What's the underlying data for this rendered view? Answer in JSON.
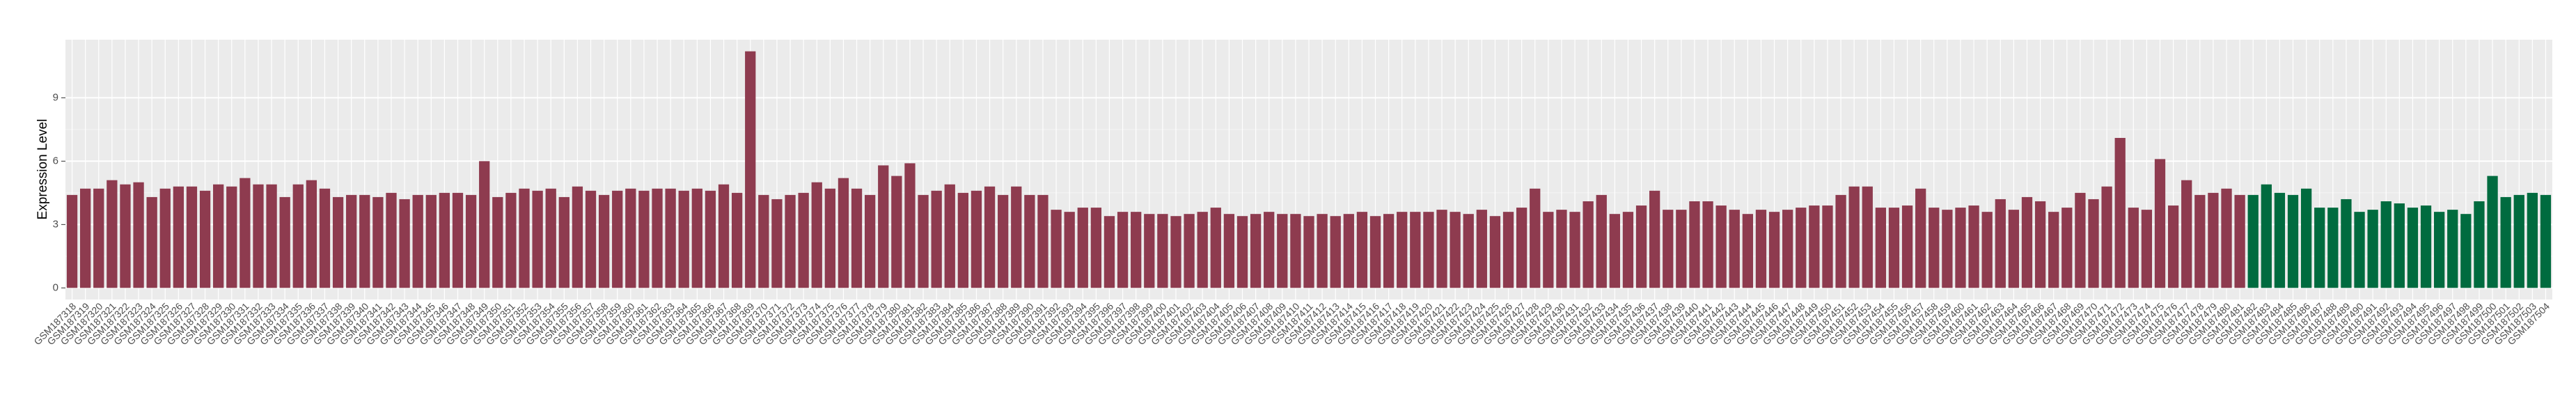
{
  "chart_data": {
    "type": "bar",
    "y_label": "Expression Level",
    "categories": [
      "GSM187318",
      "GSM187319",
      "GSM187320",
      "GSM187321",
      "GSM187322",
      "GSM187323",
      "GSM187324",
      "GSM187325",
      "GSM187326",
      "GSM187327",
      "GSM187328",
      "GSM187329",
      "GSM187330",
      "GSM187331",
      "GSM187332",
      "GSM187333",
      "GSM187334",
      "GSM187335",
      "GSM187336",
      "GSM187337",
      "GSM187338",
      "GSM187339",
      "GSM187340",
      "GSM187341",
      "GSM187342",
      "GSM187343",
      "GSM187344",
      "GSM187345",
      "GSM187346",
      "GSM187347",
      "GSM187348",
      "GSM187349",
      "GSM187350",
      "GSM187351",
      "GSM187352",
      "GSM187353",
      "GSM187354",
      "GSM187355",
      "GSM187356",
      "GSM187357",
      "GSM187358",
      "GSM187359",
      "GSM187360",
      "GSM187361",
      "GSM187362",
      "GSM187363",
      "GSM187364",
      "GSM187365",
      "GSM187366",
      "GSM187367",
      "GSM187368",
      "GSM187369",
      "GSM187370",
      "GSM187371",
      "GSM187372",
      "GSM187373",
      "GSM187374",
      "GSM187375",
      "GSM187376",
      "GSM187377",
      "GSM187378",
      "GSM187379",
      "GSM187380",
      "GSM187381",
      "GSM187382",
      "GSM187383",
      "GSM187384",
      "GSM187385",
      "GSM187386",
      "GSM187387",
      "GSM187388",
      "GSM187389",
      "GSM187390",
      "GSM187391",
      "GSM187392",
      "GSM187393",
      "GSM187394",
      "GSM187395",
      "GSM187396",
      "GSM187397",
      "GSM187398",
      "GSM187399",
      "GSM187400",
      "GSM187401",
      "GSM187402",
      "GSM187403",
      "GSM187404",
      "GSM187405",
      "GSM187406",
      "GSM187407",
      "GSM187408",
      "GSM187409",
      "GSM187410",
      "GSM187411",
      "GSM187412",
      "GSM187413",
      "GSM187414",
      "GSM187415",
      "GSM187416",
      "GSM187417",
      "GSM187418",
      "GSM187419",
      "GSM187420",
      "GSM187421",
      "GSM187422",
      "GSM187423",
      "GSM187424",
      "GSM187425",
      "GSM187426",
      "GSM187427",
      "GSM187428",
      "GSM187429",
      "GSM187430",
      "GSM187431",
      "GSM187432",
      "GSM187433",
      "GSM187434",
      "GSM187435",
      "GSM187436",
      "GSM187437",
      "GSM187438",
      "GSM187439",
      "GSM187440",
      "GSM187441",
      "GSM187442",
      "GSM187443",
      "GSM187444",
      "GSM187445",
      "GSM187446",
      "GSM187447",
      "GSM187448",
      "GSM187449",
      "GSM187450",
      "GSM187451",
      "GSM187452",
      "GSM187453",
      "GSM187454",
      "GSM187455",
      "GSM187456",
      "GSM187457",
      "GSM187458",
      "GSM187459",
      "GSM187460",
      "GSM187461",
      "GSM187462",
      "GSM187463",
      "GSM187464",
      "GSM187465",
      "GSM187466",
      "GSM187467",
      "GSM187468",
      "GSM187469",
      "GSM187470",
      "GSM187471",
      "GSM187472",
      "GSM187473",
      "GSM187474",
      "GSM187475",
      "GSM187476",
      "GSM187477",
      "GSM187478",
      "GSM187479",
      "GSM187480",
      "GSM187481",
      "GSM187482",
      "GSM187483",
      "GSM187484",
      "GSM187485",
      "GSM187486",
      "GSM187487",
      "GSM187488",
      "GSM187489",
      "GSM187490",
      "GSM187491",
      "GSM187492",
      "GSM187493",
      "GSM187494",
      "GSM187495",
      "GSM187496",
      "GSM187497",
      "GSM187498",
      "GSM187499",
      "GSM187500",
      "GSM187501",
      "GSM187502",
      "GSM187503",
      "GSM187504"
    ],
    "values": [
      4.4,
      4.7,
      4.7,
      5.1,
      4.9,
      5.0,
      4.3,
      4.7,
      4.8,
      4.8,
      4.6,
      4.9,
      4.8,
      5.2,
      4.9,
      4.9,
      4.3,
      4.9,
      5.1,
      4.7,
      4.3,
      4.4,
      4.4,
      4.3,
      4.5,
      4.2,
      4.4,
      4.4,
      4.5,
      4.5,
      4.4,
      6.0,
      4.3,
      4.5,
      4.7,
      4.6,
      4.7,
      4.3,
      4.8,
      4.6,
      4.4,
      4.6,
      4.7,
      4.6,
      4.7,
      4.7,
      4.6,
      4.7,
      4.6,
      4.9,
      4.5,
      11.2,
      4.4,
      4.2,
      4.4,
      4.5,
      5.0,
      4.7,
      5.2,
      4.7,
      4.4,
      5.8,
      5.3,
      5.9,
      4.4,
      4.6,
      4.9,
      4.5,
      4.6,
      4.8,
      4.4,
      4.8,
      4.4,
      4.4,
      3.7,
      3.6,
      3.8,
      3.8,
      3.4,
      3.6,
      3.6,
      3.5,
      3.5,
      3.4,
      3.5,
      3.6,
      3.8,
      3.5,
      3.4,
      3.5,
      3.6,
      3.5,
      3.5,
      3.4,
      3.5,
      3.4,
      3.5,
      3.6,
      3.4,
      3.5,
      3.6,
      3.6,
      3.6,
      3.7,
      3.6,
      3.5,
      3.7,
      3.4,
      3.6,
      3.8,
      4.7,
      3.6,
      3.7,
      3.6,
      4.1,
      4.4,
      3.5,
      3.6,
      3.9,
      4.6,
      3.7,
      3.7,
      4.1,
      4.1,
      3.9,
      3.7,
      3.5,
      3.7,
      3.6,
      3.7,
      3.8,
      3.9,
      3.9,
      4.4,
      4.8,
      4.8,
      3.8,
      3.8,
      3.9,
      4.7,
      3.8,
      3.7,
      3.8,
      3.9,
      3.6,
      4.2,
      3.7,
      4.3,
      4.1,
      3.6,
      3.8,
      4.5,
      4.2,
      4.8,
      7.1,
      3.8,
      3.7,
      6.1,
      3.9,
      5.1,
      4.4,
      4.5,
      4.7,
      4.4,
      4.4,
      4.9,
      4.5,
      4.4,
      4.7,
      3.8,
      3.8,
      4.2,
      3.6,
      3.7,
      4.1,
      4.0,
      3.8,
      3.9,
      3.6,
      3.7,
      3.5,
      4.1,
      5.3,
      4.3,
      4.4,
      4.5,
      4.4
    ],
    "palette": [
      "#8e3b4f",
      "#006b3f"
    ],
    "color_group": [
      0,
      0,
      0,
      0,
      0,
      0,
      0,
      0,
      0,
      0,
      0,
      0,
      0,
      0,
      0,
      0,
      0,
      0,
      0,
      0,
      0,
      0,
      0,
      0,
      0,
      0,
      0,
      0,
      0,
      0,
      0,
      0,
      0,
      0,
      0,
      0,
      0,
      0,
      0,
      0,
      0,
      0,
      0,
      0,
      0,
      0,
      0,
      0,
      0,
      0,
      0,
      0,
      0,
      0,
      0,
      0,
      0,
      0,
      0,
      0,
      0,
      0,
      0,
      0,
      0,
      0,
      0,
      0,
      0,
      0,
      0,
      0,
      0,
      0,
      0,
      0,
      0,
      0,
      0,
      0,
      0,
      0,
      0,
      0,
      0,
      0,
      0,
      0,
      0,
      0,
      0,
      0,
      0,
      0,
      0,
      0,
      0,
      0,
      0,
      0,
      0,
      0,
      0,
      0,
      0,
      0,
      0,
      0,
      0,
      0,
      0,
      0,
      0,
      0,
      0,
      0,
      0,
      0,
      0,
      0,
      0,
      0,
      0,
      0,
      0,
      0,
      0,
      0,
      0,
      0,
      0,
      0,
      0,
      0,
      0,
      0,
      0,
      0,
      0,
      0,
      0,
      0,
      0,
      0,
      0,
      0,
      0,
      0,
      0,
      0,
      0,
      0,
      0,
      0,
      0,
      0,
      0,
      0,
      0,
      0,
      0,
      0,
      0,
      0,
      1,
      1,
      1,
      1,
      1,
      1,
      1,
      1,
      1,
      1,
      1,
      1,
      1,
      1,
      1,
      1,
      1,
      1,
      1,
      1,
      1,
      1,
      1
    ],
    "ylim": [
      -0.55,
      11.75
    ],
    "yticks": [
      0,
      3,
      6,
      9
    ],
    "grid": true
  }
}
